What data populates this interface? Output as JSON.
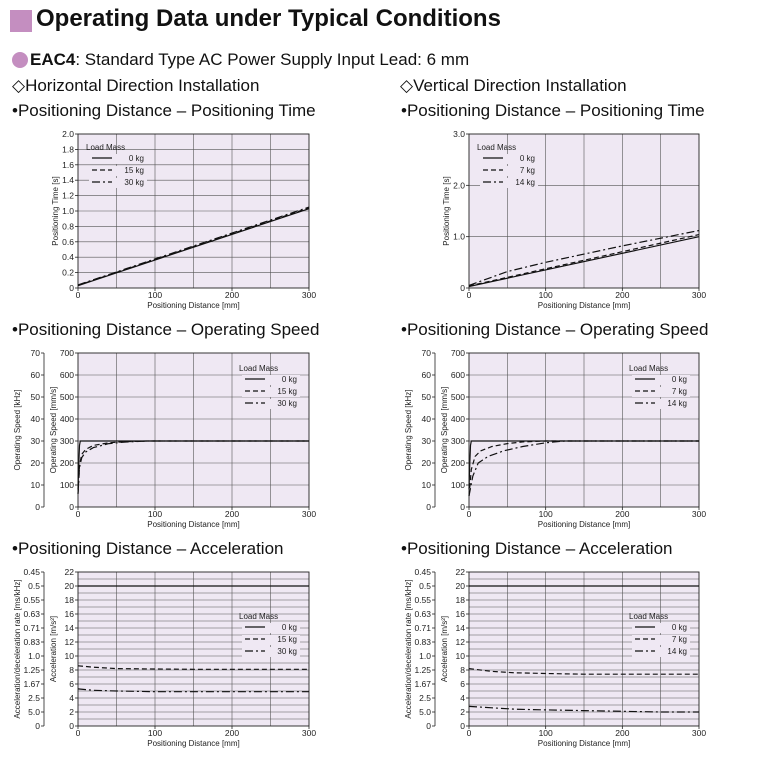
{
  "header": {
    "title": "Operating Data under Typical Conditions",
    "model": "EAC4",
    "model_rest": ": Standard Type  AC Power Supply Input  Lead: 6 mm"
  },
  "columns": [
    {
      "installation": "◇Horizontal Direction Installation"
    },
    {
      "installation": "◇Vertical Direction Installation"
    }
  ],
  "sections": {
    "time": "•Positioning Distance – Positioning Time",
    "speed": "•Positioning Distance – Operating Speed",
    "accel": "•Positioning Distance – Acceleration"
  },
  "colors": {
    "plot_bg": "#efe8f3",
    "grid": "#555555",
    "accent": "#c48ec0"
  },
  "chart_data": [
    {
      "id": "h-time",
      "type": "line",
      "xlabel": "Positioning Distance [mm]",
      "ylabel": "Positioning Time [s]",
      "xlim": [
        0,
        300
      ],
      "ylim": [
        0,
        2.0
      ],
      "x_ticks": [
        "0",
        "100",
        "200",
        "300"
      ],
      "y_ticks": [
        "0",
        "0.2",
        "0.4",
        "0.6",
        "0.8",
        "1.0",
        "1.2",
        "1.4",
        "1.6",
        "1.8",
        "2.0"
      ],
      "y_tick_values": [
        0,
        0.2,
        0.4,
        0.6,
        0.8,
        1.0,
        1.2,
        1.4,
        1.6,
        1.8,
        2.0
      ],
      "grid_x": [
        50,
        100,
        150,
        200,
        250
      ],
      "grid_y": [
        0.2,
        0.4,
        0.6,
        0.8,
        1.0,
        1.2,
        1.4,
        1.6,
        1.8
      ],
      "legend_title": "Load Mass",
      "legend_position": "top-left",
      "series": [
        {
          "name": "0 kg",
          "dash": "solid",
          "x": [
            0,
            300
          ],
          "y": [
            0.03,
            1.03
          ]
        },
        {
          "name": "15 kg",
          "dash": "dashed",
          "x": [
            0,
            300
          ],
          "y": [
            0.035,
            1.04
          ]
        },
        {
          "name": "30 kg",
          "dash": "dashdot",
          "x": [
            0,
            300
          ],
          "y": [
            0.04,
            1.05
          ]
        }
      ]
    },
    {
      "id": "v-time",
      "type": "line",
      "xlabel": "Positioning Distance [mm]",
      "ylabel": "Positioning Time [s]",
      "xlim": [
        0,
        300
      ],
      "ylim": [
        0,
        3.0
      ],
      "x_ticks": [
        "0",
        "100",
        "200",
        "300"
      ],
      "y_ticks": [
        "0",
        "1.0",
        "2.0",
        "3.0"
      ],
      "y_tick_values": [
        0,
        1.0,
        2.0,
        3.0
      ],
      "grid_x": [
        50,
        100,
        150,
        200,
        250
      ],
      "grid_y": [
        1.0,
        2.0
      ],
      "legend_title": "Load Mass",
      "legend_position": "top-left",
      "series": [
        {
          "name": "0 kg",
          "dash": "solid",
          "x": [
            0,
            300
          ],
          "y": [
            0.03,
            1.0
          ]
        },
        {
          "name": "7 kg",
          "dash": "dashed",
          "x": [
            0,
            300
          ],
          "y": [
            0.04,
            1.04
          ]
        },
        {
          "name": "14 kg",
          "dash": "dashdot",
          "x": [
            0,
            50,
            100,
            200,
            300
          ],
          "y": [
            0.05,
            0.32,
            0.5,
            0.82,
            1.12
          ]
        }
      ]
    },
    {
      "id": "h-speed",
      "type": "line",
      "xlabel": "Positioning Distance [mm]",
      "ylabel": "Operating Speed [mm/s]",
      "ylabel2": "Operating Speed [kHz]",
      "xlim": [
        0,
        300
      ],
      "ylim": [
        0,
        700
      ],
      "x_ticks": [
        "0",
        "100",
        "200",
        "300"
      ],
      "y_ticks": [
        "0",
        "100",
        "200",
        "300",
        "400",
        "500",
        "600",
        "700"
      ],
      "y_tick_values": [
        0,
        100,
        200,
        300,
        400,
        500,
        600,
        700
      ],
      "y2_ticks": [
        "0",
        "10",
        "20",
        "30",
        "40",
        "50",
        "60",
        "70"
      ],
      "grid_x": [
        50,
        100,
        150,
        200,
        250
      ],
      "grid_y": [
        100,
        200,
        300,
        400,
        500,
        600
      ],
      "legend_title": "Load Mass",
      "legend_position": "top-right",
      "series": [
        {
          "name": "0 kg",
          "dash": "solid",
          "x": [
            0,
            1,
            2,
            3,
            300
          ],
          "y": [
            80,
            200,
            280,
            300,
            300
          ]
        },
        {
          "name": "15 kg",
          "dash": "dashed",
          "x": [
            0,
            2,
            5,
            10,
            20,
            40,
            60,
            90,
            300
          ],
          "y": [
            60,
            190,
            240,
            262,
            280,
            292,
            297,
            300,
            300
          ]
        },
        {
          "name": "30 kg",
          "dash": "dashdot",
          "x": [
            0,
            2,
            5,
            10,
            20,
            40,
            60,
            90,
            300
          ],
          "y": [
            60,
            180,
            225,
            250,
            270,
            288,
            295,
            300,
            300
          ]
        }
      ]
    },
    {
      "id": "v-speed",
      "type": "line",
      "xlabel": "Positioning Distance [mm]",
      "ylabel": "Operating Speed [mm/s]",
      "ylabel2": "Operating Speed [kHz]",
      "xlim": [
        0,
        300
      ],
      "ylim": [
        0,
        700
      ],
      "x_ticks": [
        "0",
        "100",
        "200",
        "300"
      ],
      "y_ticks": [
        "0",
        "100",
        "200",
        "300",
        "400",
        "500",
        "600",
        "700"
      ],
      "y_tick_values": [
        0,
        100,
        200,
        300,
        400,
        500,
        600,
        700
      ],
      "y2_ticks": [
        "0",
        "10",
        "20",
        "30",
        "40",
        "50",
        "60",
        "70"
      ],
      "grid_x": [
        50,
        100,
        150,
        200,
        250
      ],
      "grid_y": [
        100,
        200,
        300,
        400,
        500,
        600
      ],
      "legend_title": "Load Mass",
      "legend_position": "top-right",
      "series": [
        {
          "name": "0 kg",
          "dash": "solid",
          "x": [
            0,
            1,
            2,
            3,
            300
          ],
          "y": [
            80,
            200,
            280,
            300,
            300
          ]
        },
        {
          "name": "7 kg",
          "dash": "dashed",
          "x": [
            0,
            3,
            8,
            15,
            30,
            50,
            70,
            100,
            300
          ],
          "y": [
            50,
            170,
            230,
            255,
            275,
            288,
            296,
            300,
            300
          ]
        },
        {
          "name": "14 kg",
          "dash": "dashdot",
          "x": [
            0,
            5,
            12,
            25,
            45,
            70,
            100,
            125,
            300
          ],
          "y": [
            50,
            140,
            200,
            230,
            255,
            275,
            292,
            300,
            300
          ]
        }
      ]
    },
    {
      "id": "h-accel",
      "type": "line",
      "xlabel": "Positioning Distance [mm]",
      "ylabel": "Acceleration [m/s²]",
      "ylabel2": "Acceleration/deceleration rate [ms/kHz]",
      "xlim": [
        0,
        300
      ],
      "ylim": [
        0,
        22
      ],
      "x_ticks": [
        "0",
        "100",
        "200",
        "300"
      ],
      "y_ticks": [
        "0",
        "2",
        "4",
        "6",
        "8",
        "10",
        "12",
        "14",
        "16",
        "18",
        "20",
        "22"
      ],
      "y_tick_values": [
        0,
        2,
        4,
        6,
        8,
        10,
        12,
        14,
        16,
        18,
        20,
        22
      ],
      "y2_ticks": [
        "0",
        "5.0",
        "2.5",
        "1.67",
        "1.25",
        "1.0",
        "0.83",
        "0.71",
        "0.63",
        "0.55",
        "0.5",
        "0.45"
      ],
      "grid_x": [
        50,
        100,
        150,
        200,
        250
      ],
      "grid_y": [
        1,
        2,
        3,
        4,
        5,
        6,
        7,
        8,
        9,
        10,
        11,
        12,
        13,
        14,
        15,
        16,
        17,
        18,
        19,
        20,
        21
      ],
      "legend_title": "Load Mass",
      "legend_position": "right",
      "series": [
        {
          "name": "0 kg",
          "dash": "solid",
          "x": [
            0,
            300
          ],
          "y": [
            20,
            20
          ]
        },
        {
          "name": "15 kg",
          "dash": "dashed",
          "x": [
            0,
            20,
            50,
            100,
            150,
            200,
            250,
            300
          ],
          "y": [
            8.6,
            8.4,
            8.2,
            8.15,
            8.1,
            8.1,
            8.1,
            8.1
          ]
        },
        {
          "name": "30 kg",
          "dash": "dashdot",
          "x": [
            0,
            20,
            50,
            100,
            150,
            200,
            250,
            300
          ],
          "y": [
            5.3,
            5.1,
            5.0,
            4.9,
            4.9,
            4.9,
            4.9,
            4.9
          ]
        }
      ]
    },
    {
      "id": "v-accel",
      "type": "line",
      "xlabel": "Positioning Distance [mm]",
      "ylabel": "Acceleration [m/s²]",
      "ylabel2": "Acceleration/deceleration rate [ms/kHz]",
      "xlim": [
        0,
        300
      ],
      "ylim": [
        0,
        22
      ],
      "x_ticks": [
        "0",
        "100",
        "200",
        "300"
      ],
      "y_ticks": [
        "0",
        "2",
        "4",
        "6",
        "8",
        "10",
        "12",
        "14",
        "16",
        "18",
        "20",
        "22"
      ],
      "y_tick_values": [
        0,
        2,
        4,
        6,
        8,
        10,
        12,
        14,
        16,
        18,
        20,
        22
      ],
      "y2_ticks": [
        "0",
        "5.0",
        "2.5",
        "1.67",
        "1.25",
        "1.0",
        "0.83",
        "0.71",
        "0.63",
        "0.55",
        "0.5",
        "0.45"
      ],
      "grid_x": [
        50,
        100,
        150,
        200,
        250
      ],
      "grid_y": [
        1,
        2,
        3,
        4,
        5,
        6,
        7,
        8,
        9,
        10,
        11,
        12,
        13,
        14,
        15,
        16,
        17,
        18,
        19,
        20,
        21
      ],
      "legend_title": "Load Mass",
      "legend_position": "right",
      "series": [
        {
          "name": "0 kg",
          "dash": "solid",
          "x": [
            0,
            300
          ],
          "y": [
            20,
            20
          ]
        },
        {
          "name": "7 kg",
          "dash": "dashed",
          "x": [
            0,
            30,
            60,
            100,
            150,
            200,
            250,
            300
          ],
          "y": [
            8.2,
            7.8,
            7.6,
            7.5,
            7.4,
            7.4,
            7.4,
            7.4
          ]
        },
        {
          "name": "14 kg",
          "dash": "dashdot",
          "x": [
            0,
            30,
            60,
            100,
            150,
            200,
            250,
            300
          ],
          "y": [
            2.8,
            2.6,
            2.4,
            2.3,
            2.2,
            2.1,
            2.0,
            2.0
          ]
        }
      ]
    }
  ]
}
